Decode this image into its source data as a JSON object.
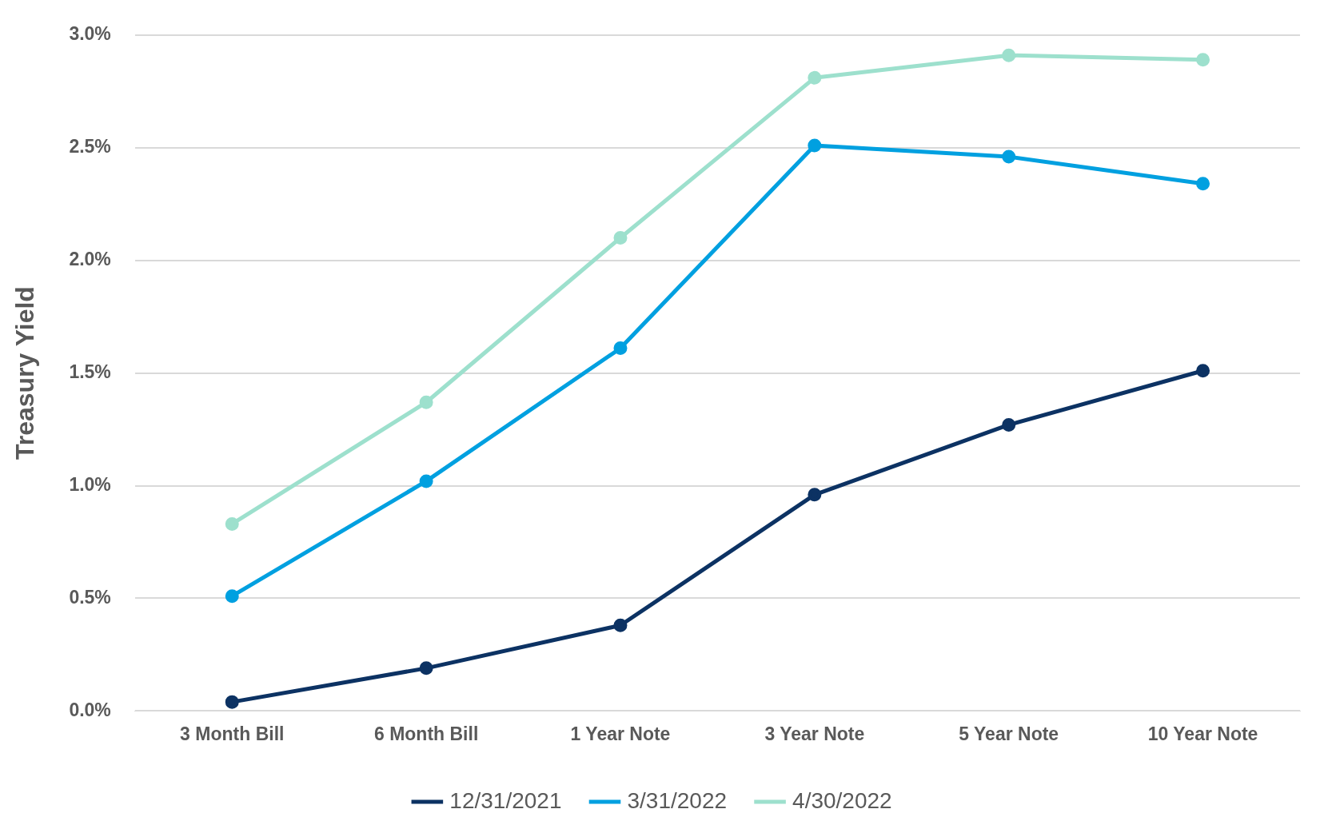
{
  "chart_data": {
    "type": "line",
    "ylabel": "Treasury Yield",
    "categories": [
      "3 Month Bill",
      "6 Month Bill",
      "1 Year Note",
      "3 Year Note",
      "5 Year Note",
      "10 Year Note"
    ],
    "series": [
      {
        "name": "12/31/2021",
        "color": "#0c3263",
        "values": [
          0.04,
          0.19,
          0.38,
          0.96,
          1.27,
          1.51
        ]
      },
      {
        "name": "3/31/2022",
        "color": "#00a0e0",
        "values": [
          0.51,
          1.02,
          1.61,
          2.51,
          2.46,
          2.34
        ]
      },
      {
        "name": "4/30/2022",
        "color": "#9de0cd",
        "values": [
          0.83,
          1.37,
          2.1,
          2.81,
          2.91,
          2.89
        ]
      }
    ],
    "ylim": [
      0,
      3
    ],
    "yticks": [
      {
        "value": 0,
        "label": "0.0%"
      },
      {
        "value": 0.5,
        "label": "0.5%"
      },
      {
        "value": 1,
        "label": "1.0%"
      },
      {
        "value": 1.5,
        "label": "1.5%"
      },
      {
        "value": 2,
        "label": "2.0%"
      },
      {
        "value": 2.5,
        "label": "2.5%"
      },
      {
        "value": 3,
        "label": "3.0%"
      }
    ],
    "grid": "y",
    "legend": "bottom",
    "marker": "circle",
    "line_style": "solid"
  }
}
